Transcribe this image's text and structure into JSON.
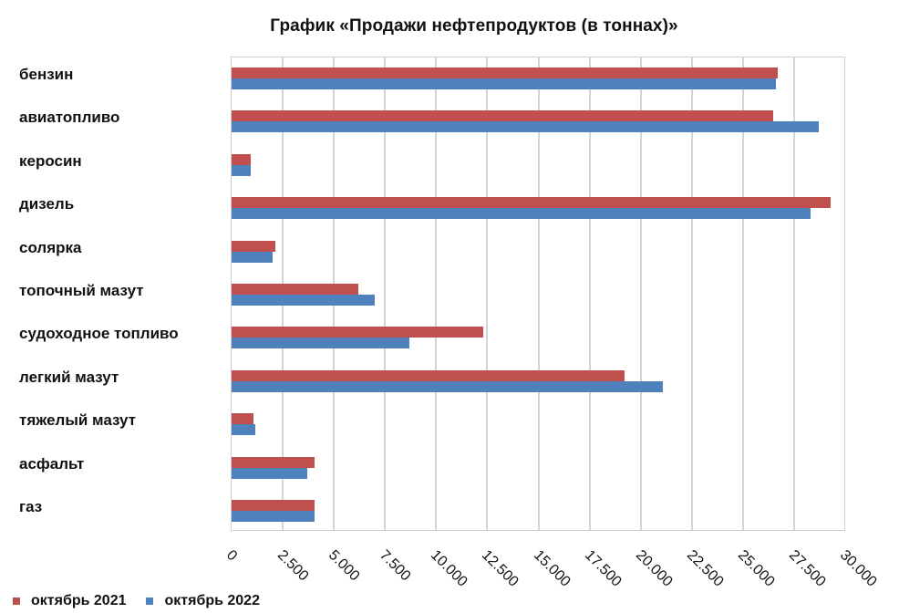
{
  "chart_data": {
    "type": "bar",
    "orientation": "horizontal",
    "title": "График «Продажи нефтепродуктов (в тоннах)»",
    "xlabel": "",
    "ylabel": "",
    "xlim": [
      0,
      30000
    ],
    "grid": true,
    "legend_position": "bottom-left",
    "categories": [
      "бензин",
      "авиатопливо",
      "керосин",
      "дизель",
      "солярка",
      "топочный мазут",
      "судоходное топливо",
      "легкий мазут",
      "тяжелый мазут",
      "асфальт",
      "газ"
    ],
    "series": [
      {
        "name": "октябрь 2021",
        "color": "#C0504D",
        "values": [
          26700,
          26500,
          950,
          29300,
          2150,
          6200,
          12300,
          19200,
          1050,
          4050,
          4050
        ]
      },
      {
        "name": "октябрь 2022",
        "color": "#4F81BD",
        "values": [
          26600,
          28700,
          950,
          28300,
          2000,
          7000,
          8700,
          21100,
          1150,
          3700,
          4050
        ]
      }
    ],
    "tick_labels": [
      "0",
      "2.500",
      "5.000",
      "7.500",
      "10.000",
      "12.500",
      "15.000",
      "17.500",
      "20.000",
      "22.500",
      "25.000",
      "27.500",
      "30.000"
    ]
  }
}
